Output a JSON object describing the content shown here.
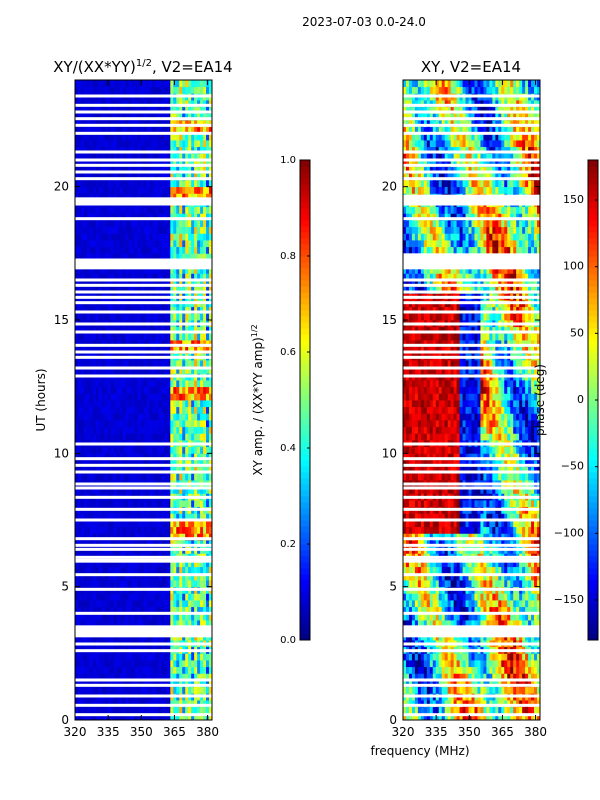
{
  "suptitle": "2023-07-03 0.0-24.0",
  "xlabel_common": "frequency (MHz)",
  "colors": {
    "jet": [
      "#00007f",
      "#0000ff",
      "#007fff",
      "#00ffff",
      "#7fff7f",
      "#ffff00",
      "#ff7f00",
      "#ff0000",
      "#7f0000"
    ]
  },
  "chart_data": [
    {
      "type": "heatmap",
      "title_main": "XY/(XX*YY)",
      "title_sup": "1/2",
      "title_rest": ", V2=EA14",
      "xlabel": "",
      "ylabel": "UT (hours)",
      "xlim": [
        320,
        382
      ],
      "ylim": [
        0,
        24
      ],
      "xticks": [
        "320",
        "335",
        "350",
        "365",
        "380"
      ],
      "xtick_values": [
        320,
        335,
        350,
        365,
        380
      ],
      "yticks": [
        "0",
        "5",
        "10",
        "15",
        "20"
      ],
      "ytick_values": [
        0,
        5,
        10,
        15,
        20
      ],
      "colorbar": {
        "label": "XY amp. / (XX*YY amp)",
        "label_sup": "1/2",
        "range": [
          0.0,
          1.0
        ],
        "ticks": [
          "0.0",
          "0.2",
          "0.4",
          "0.6",
          "0.8",
          "1.0"
        ],
        "tick_values": [
          0.0,
          0.2,
          0.4,
          0.6,
          0.8,
          1.0
        ]
      },
      "gap_hours": [
        0.2,
        0.55,
        0.9,
        1.3,
        1.5,
        2.6,
        2.85,
        3.35,
        3.45,
        4.0,
        4.9,
        5.45,
        6.1,
        6.4,
        6.55,
        6.8,
        7.5,
        7.9,
        8.35,
        8.7,
        8.85,
        9.3,
        9.55,
        9.8,
        10.35,
        12.9,
        13.2,
        13.6,
        13.8,
        14.05,
        14.55,
        14.85,
        15.3,
        15.65,
        15.85,
        16.05,
        16.3,
        16.5,
        17.0,
        17.15,
        17.25,
        18.8,
        19.35,
        19.5,
        20.3,
        20.55,
        20.8,
        21.0,
        21.3,
        22.0,
        22.3,
        22.55,
        22.8,
        23.05,
        23.4
      ],
      "band_start_mhz": 362.5,
      "hot_hours": [
        7.0,
        7.3,
        12.3,
        14.1,
        19.7,
        22.2
      ]
    },
    {
      "type": "heatmap",
      "title_main": "XY, V2=EA14",
      "xlabel": "frequency (MHz)",
      "ylabel": "",
      "xlim": [
        320,
        382
      ],
      "ylim": [
        0,
        24
      ],
      "xticks": [
        "320",
        "335",
        "350",
        "365",
        "380"
      ],
      "xtick_values": [
        320,
        335,
        350,
        365,
        380
      ],
      "yticks": [
        "0",
        "5",
        "10",
        "15",
        "20"
      ],
      "ytick_values": [
        0,
        5,
        10,
        15,
        20
      ],
      "colorbar": {
        "label": "phase (deg)",
        "range": [
          -180,
          180
        ],
        "ticks": [
          "−150",
          "−100",
          "−50",
          "0",
          "50",
          "100",
          "150"
        ],
        "tick_values": [
          -150,
          -100,
          -50,
          0,
          50,
          100,
          150
        ]
      },
      "gap_hours": [
        0.2,
        0.55,
        0.9,
        1.3,
        1.5,
        2.6,
        2.85,
        3.35,
        3.45,
        4.0,
        4.9,
        5.45,
        6.1,
        6.4,
        6.55,
        6.8,
        7.5,
        7.9,
        8.35,
        8.7,
        8.85,
        9.3,
        9.55,
        9.8,
        10.35,
        12.9,
        13.2,
        13.6,
        13.8,
        14.05,
        14.55,
        14.85,
        15.3,
        15.65,
        15.85,
        16.05,
        16.3,
        16.5,
        17.0,
        17.15,
        17.25,
        18.8,
        19.35,
        19.5,
        20.3,
        20.55,
        20.8,
        21.0,
        21.3,
        22.0,
        22.3,
        22.55,
        22.8,
        23.05,
        23.4
      ],
      "wide_gaps": [
        [
          3.1,
          3.55
        ],
        [
          5.9,
          6.05
        ],
        [
          16.9,
          17.5
        ],
        [
          19.3,
          19.7
        ]
      ]
    }
  ]
}
